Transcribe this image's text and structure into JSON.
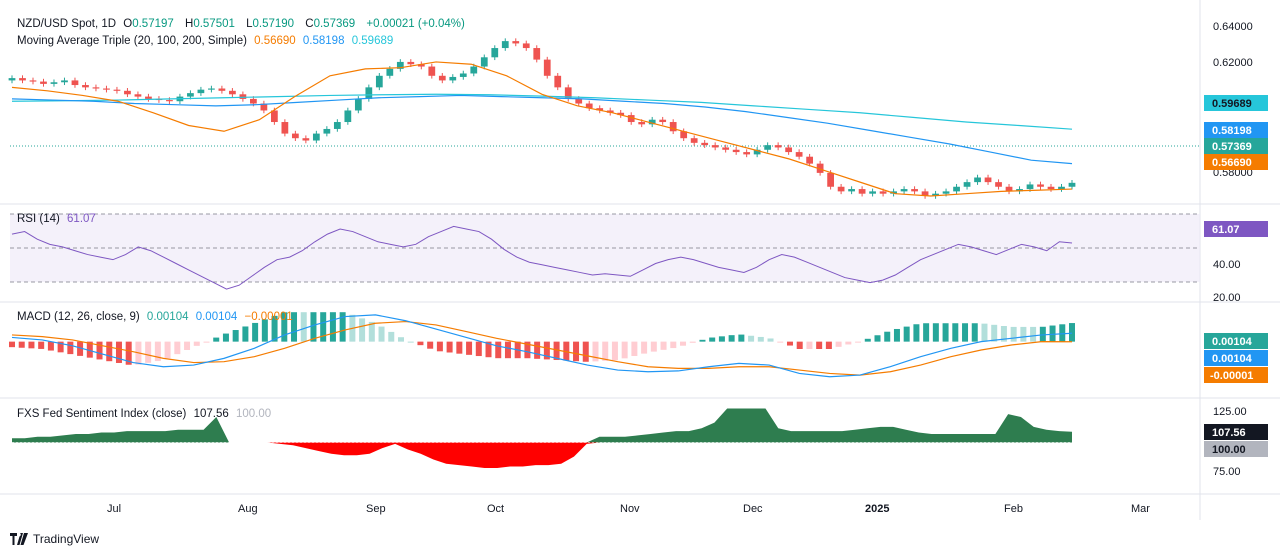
{
  "header": {
    "symbol": "NZD/USD Spot, 1D",
    "open_label": "O",
    "open": "0.57197",
    "high_label": "H",
    "high": "0.57501",
    "low_label": "L",
    "low": "0.57190",
    "close_label": "C",
    "close": "0.57369",
    "change": "+0.00021 (+0.04%)"
  },
  "ma_legend": {
    "title": "Moving Average Triple (20, 100, 200, Simple)",
    "v20": "0.56690",
    "v100": "0.58198",
    "v200": "0.59689"
  },
  "rsi_legend": {
    "title": "RSI (14)",
    "value": "61.07"
  },
  "macd_legend": {
    "title": "MACD (12, 26, close, 9)",
    "hist": "0.00104",
    "macd": "0.00104",
    "signal": "−0.00001"
  },
  "fxs_legend": {
    "title": "FXS Fed Sentiment Index (close)",
    "value": "107.56",
    "base": "100.00"
  },
  "colors": {
    "up": "#26a69a",
    "down": "#ef5350",
    "ma20": "#f57c00",
    "ma100": "#2196f3",
    "ma200": "#26c6da",
    "rsi": "#7e57c2",
    "macd": "#2196f3",
    "signal": "#f57c00",
    "hist_up_strong": "#26a69a",
    "hist_up_weak": "#b2dfdb",
    "hist_down_strong": "#ef5350",
    "hist_down_weak": "#ffcdd2",
    "fxs_pos": "#2e7d4f",
    "fxs_neg": "#ff0000"
  },
  "x_axis": [
    "Jul",
    "Aug",
    "Sep",
    "Oct",
    "Nov",
    "Dec",
    "2025",
    "Feb",
    "Mar"
  ],
  "price_axis": [
    "0.64000",
    "0.62000",
    "0.60000",
    "0.58000"
  ],
  "rsi_axis": [
    "40.00",
    "20.00"
  ],
  "fxs_axis": [
    "125.00",
    "75.00"
  ],
  "badges": {
    "ma200": "0.59689",
    "ma100": "0.58198",
    "close": "0.57369",
    "ma20": "0.56690",
    "rsi": "61.07",
    "macd_hist": "0.00104",
    "macd": "0.00104",
    "macd_signal": "-0.00001",
    "fxs": "107.56",
    "fxs_base": "100.00"
  },
  "footer": {
    "brand": "TradingView"
  },
  "chart_data": {
    "type": "candlestick",
    "panels": [
      {
        "name": "price",
        "ylim": [
          0.568,
          0.645
        ],
        "close_series": [
          0.619,
          0.618,
          0.6175,
          0.6165,
          0.6172,
          0.618,
          0.616,
          0.615,
          0.6145,
          0.614,
          0.6135,
          0.612,
          0.611,
          0.61,
          0.6095,
          0.609,
          0.611,
          0.6125,
          0.614,
          0.6145,
          0.6135,
          0.612,
          0.61,
          0.608,
          0.605,
          0.6,
          0.595,
          0.593,
          0.592,
          0.595,
          0.597,
          0.6,
          0.605,
          0.61,
          0.615,
          0.62,
          0.623,
          0.626,
          0.625,
          0.624,
          0.62,
          0.618,
          0.6195,
          0.621,
          0.624,
          0.628,
          0.632,
          0.635,
          0.634,
          0.632,
          0.627,
          0.62,
          0.615,
          0.61,
          0.608,
          0.606,
          0.605,
          0.604,
          0.603,
          0.6,
          0.599,
          0.601,
          0.6,
          0.596,
          0.593,
          0.591,
          0.59,
          0.589,
          0.588,
          0.587,
          0.586,
          0.588,
          0.59,
          0.589,
          0.587,
          0.585,
          0.582,
          0.578,
          0.572,
          0.57,
          0.571,
          0.569,
          0.57,
          0.569,
          0.57,
          0.571,
          0.57,
          0.568,
          0.569,
          0.57,
          0.572,
          0.574,
          0.576,
          0.574,
          0.572,
          0.57,
          0.571,
          0.573,
          0.572,
          0.571,
          0.572,
          0.5737
        ],
        "ma20_series": [
          0.615,
          0.6135,
          0.6115,
          0.609,
          0.604,
          0.5985,
          0.596,
          0.601,
          0.611,
          0.62,
          0.623,
          0.6235,
          0.626,
          0.625,
          0.62,
          0.612,
          0.607,
          0.604,
          0.6,
          0.596,
          0.592,
          0.588,
          0.584,
          0.579,
          0.574,
          0.569,
          0.568,
          0.569,
          0.57,
          0.5705,
          0.571
        ],
        "ma100_series": [
          0.61,
          0.6095,
          0.609,
          0.608,
          0.6075,
          0.607,
          0.6075,
          0.6085,
          0.6095,
          0.6105,
          0.611,
          0.6115,
          0.611,
          0.6105,
          0.61,
          0.609,
          0.608,
          0.6065,
          0.6045,
          0.602,
          0.5995,
          0.5965,
          0.5935,
          0.5905,
          0.587,
          0.5835,
          0.582
        ],
        "ma200_series": [
          0.609,
          0.6092,
          0.6095,
          0.61,
          0.6105,
          0.611,
          0.6115,
          0.6118,
          0.612,
          0.6118,
          0.6112,
          0.6105,
          0.6095,
          0.6085,
          0.607,
          0.6055,
          0.604,
          0.602,
          0.6,
          0.5985,
          0.5969
        ]
      },
      {
        "name": "RSI (14)",
        "ylim": [
          18,
          90
        ],
        "series": [
          68,
          70,
          64,
          60,
          58,
          55,
          52,
          50,
          48,
          52,
          58,
          55,
          50,
          45,
          40,
          35,
          30,
          25,
          28,
          35,
          42,
          48,
          50,
          55,
          62,
          68,
          72,
          70,
          66,
          62,
          60,
          58,
          60,
          66,
          70,
          74,
          72,
          70,
          64,
          56,
          50,
          46,
          44,
          42,
          40,
          38,
          36,
          37,
          36,
          35,
          40,
          45,
          48,
          50,
          48,
          45,
          42,
          40,
          38,
          42,
          48,
          52,
          50,
          46,
          42,
          38,
          34,
          32,
          30,
          32,
          36,
          42,
          48,
          52,
          56,
          60,
          58,
          55,
          52,
          56,
          60,
          58,
          55,
          62,
          61
        ]
      },
      {
        "name": "MACD",
        "ylim": [
          -0.0065,
          0.0045
        ],
        "macd_series": [
          0.0005,
          0.0002,
          -0.0005,
          -0.0015,
          -0.0025,
          -0.003,
          -0.0028,
          -0.002,
          -0.0008,
          0.0008,
          0.002,
          0.003,
          0.0032,
          0.0025,
          0.0015,
          0.0005,
          -0.0005,
          -0.0012,
          -0.002,
          -0.0028,
          -0.0034,
          -0.0036,
          -0.0035,
          -0.003,
          -0.0026,
          -0.0028,
          -0.0038,
          -0.0042,
          -0.004,
          -0.003,
          -0.0018,
          -0.0008,
          0.0,
          0.0004,
          0.0008,
          0.001
        ],
        "signal_series": [
          0.0008,
          0.0006,
          0.0002,
          -0.0005,
          -0.0012,
          -0.002,
          -0.0025,
          -0.0024,
          -0.0018,
          -0.0008,
          0.0004,
          0.0014,
          0.0022,
          0.0024,
          0.002,
          0.0012,
          0.0004,
          -0.0003,
          -0.001,
          -0.0017,
          -0.0024,
          -0.003,
          -0.0032,
          -0.0032,
          -0.003,
          -0.003,
          -0.0034,
          -0.0038,
          -0.004,
          -0.0036,
          -0.0028,
          -0.0018,
          -0.001,
          -0.0004,
          0.0,
          -1e-05
        ]
      },
      {
        "name": "FXS Fed Sentiment Index",
        "ylim": [
          65,
          130
        ],
        "baseline": 100,
        "series": [
          103,
          103,
          104,
          104,
          105,
          106,
          106,
          107,
          107,
          108,
          108,
          108,
          108,
          109,
          109,
          109,
          118,
          100,
          100,
          100,
          100,
          99,
          98,
          96,
          94,
          92,
          91,
          91,
          92,
          96,
          99,
          95,
          92,
          88,
          85,
          84,
          83,
          82,
          82,
          83,
          83,
          84,
          84,
          85,
          90,
          99,
          104,
          104,
          104,
          105,
          106,
          107,
          108,
          108,
          110,
          114,
          124,
          124,
          124,
          124,
          110,
          108,
          108,
          108,
          108,
          108,
          109,
          110,
          111,
          111,
          109,
          107,
          106,
          106,
          106,
          106,
          106,
          106,
          120,
          118,
          111,
          109,
          108,
          107.56
        ]
      }
    ]
  }
}
